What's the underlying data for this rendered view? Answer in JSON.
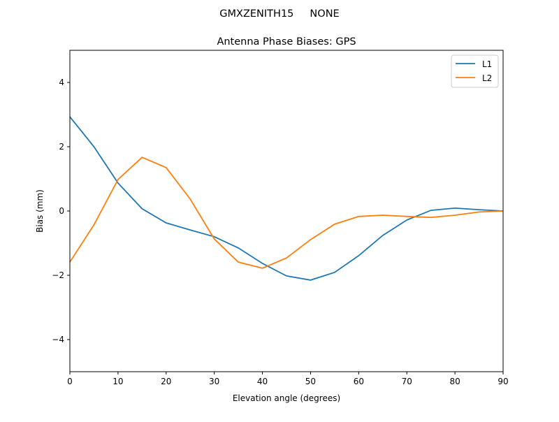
{
  "chart_data": {
    "type": "line",
    "suptitle": "GMXZENITH15     NONE",
    "title": "Antenna Phase Biases: GPS",
    "xlabel": "Elevation angle (degrees)",
    "ylabel": "Bias (mm)",
    "xlim": [
      0,
      90
    ],
    "ylim": [
      -5,
      5
    ],
    "xticks": [
      0,
      10,
      20,
      30,
      40,
      50,
      60,
      70,
      80,
      90
    ],
    "yticks": [
      -4,
      -2,
      0,
      2,
      4
    ],
    "ytick_labels": [
      "−4",
      "−2",
      "0",
      "2",
      "4"
    ],
    "grid": false,
    "legend_position": "top-right",
    "x": [
      0,
      5,
      10,
      15,
      20,
      25,
      30,
      35,
      40,
      45,
      50,
      55,
      60,
      65,
      70,
      75,
      80,
      85,
      90
    ],
    "series": [
      {
        "name": "L1",
        "color": "#1f77b4",
        "values": [
          2.93,
          2.0,
          0.87,
          0.07,
          -0.37,
          -0.59,
          -0.8,
          -1.15,
          -1.63,
          -2.02,
          -2.15,
          -1.91,
          -1.39,
          -0.76,
          -0.28,
          0.02,
          0.09,
          0.04,
          0.0
        ]
      },
      {
        "name": "L2",
        "color": "#ff7f0e",
        "values": [
          -1.59,
          -0.43,
          0.98,
          1.67,
          1.35,
          0.37,
          -0.87,
          -1.59,
          -1.78,
          -1.46,
          -0.89,
          -0.41,
          -0.17,
          -0.13,
          -0.17,
          -0.2,
          -0.13,
          -0.03,
          0.0
        ]
      }
    ]
  }
}
